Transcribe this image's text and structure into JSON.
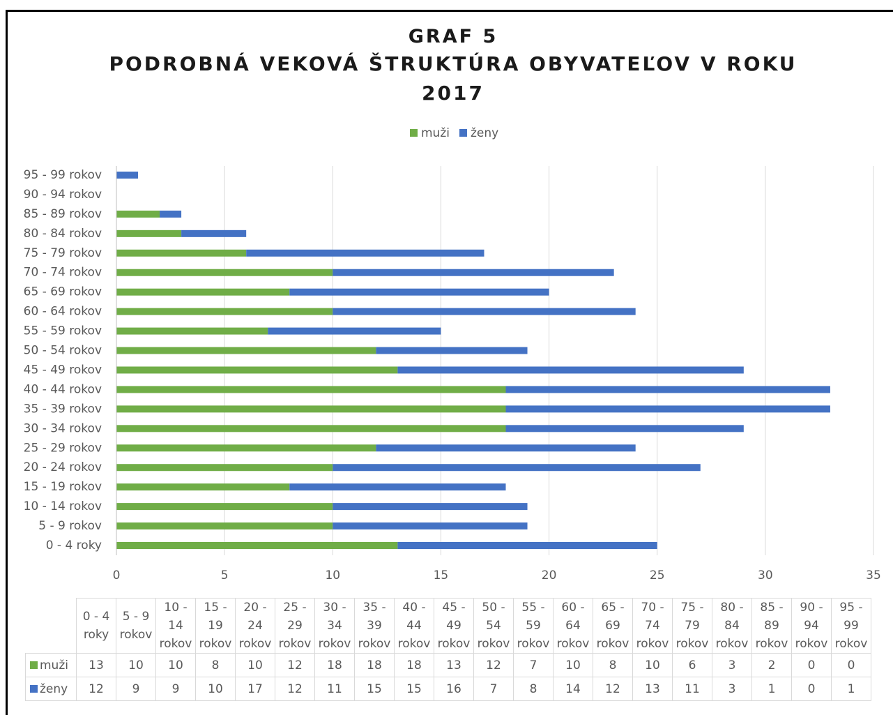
{
  "chart_data": {
    "type": "stacked_hbar",
    "title": "GRAF 5",
    "subtitle": "PODROBNÁ VEKOVÁ ŠTRUKTÚRA OBYVATEĽOV V ROKU 2017",
    "categories": [
      "0 - 4 roky",
      "5 - 9 rokov",
      "10 - 14 rokov",
      "15 - 19 rokov",
      "20 - 24 rokov",
      "25 - 29 rokov",
      "30  - 34 rokov",
      "35 - 39 rokov",
      "40 - 44 rokov",
      "45 - 49 rokov",
      "50 - 54 rokov",
      "55 - 59 rokov",
      "60 - 64 rokov",
      "65 - 69 rokov",
      "70 - 74 rokov",
      "75 - 79 rokov",
      "80 - 84 rokov",
      "85 - 89 rokov",
      "90 - 94 rokov",
      "95 - 99 rokov"
    ],
    "series": [
      {
        "name": "muži",
        "color": "#70ad47",
        "values": [
          13,
          10,
          10,
          8,
          10,
          12,
          18,
          18,
          18,
          13,
          12,
          7,
          10,
          8,
          10,
          6,
          3,
          2,
          0,
          0
        ]
      },
      {
        "name": "ženy",
        "color": "#4472c4",
        "values": [
          12,
          9,
          9,
          10,
          17,
          12,
          11,
          15,
          15,
          16,
          7,
          8,
          14,
          12,
          13,
          11,
          3,
          1,
          0,
          1
        ]
      }
    ],
    "xlim": [
      0,
      35
    ],
    "xticks": [
      0,
      5,
      10,
      15,
      20,
      25,
      30,
      35
    ],
    "grid": true,
    "legend": "top"
  }
}
